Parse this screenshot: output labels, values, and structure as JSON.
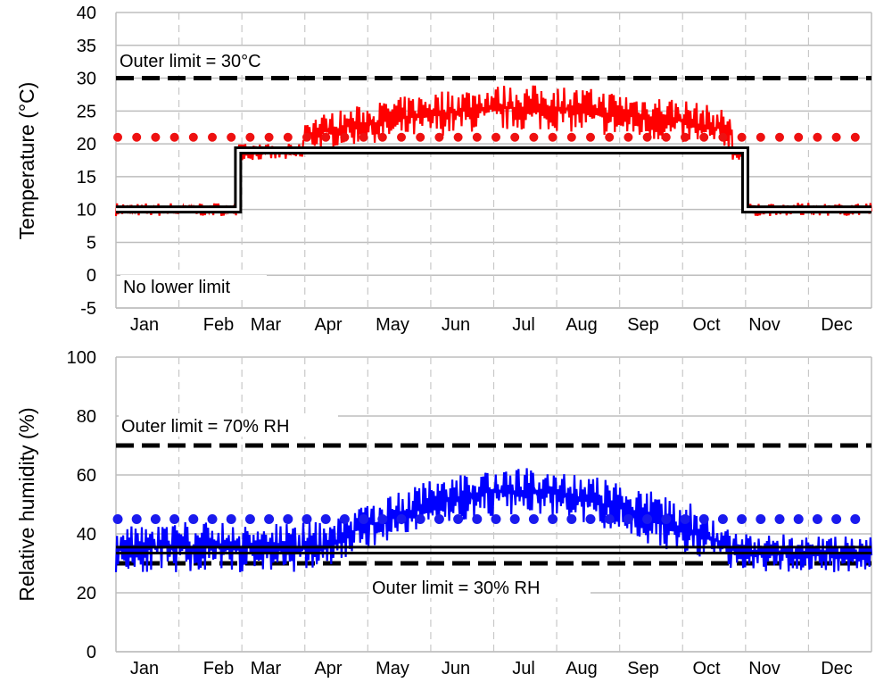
{
  "chart_data": [
    {
      "type": "line",
      "ylabel": "Temperature (°C)",
      "ylim": [
        -5,
        40
      ],
      "yticks": [
        "40",
        "35",
        "30",
        "25",
        "20",
        "15",
        "10",
        "5",
        "0",
        "-5"
      ],
      "ytick_values": [
        40,
        35,
        30,
        25,
        20,
        15,
        10,
        5,
        0,
        -5
      ],
      "categories": [
        "Jan",
        "Feb",
        "Mar",
        "Apr",
        "May",
        "Jun",
        "Jul",
        "Aug",
        "Sep",
        "Oct",
        "Nov",
        "Dec"
      ],
      "grid": true,
      "annotations": {
        "upper": "Outer limit = 30°C",
        "lower": "No lower limit"
      },
      "outer_upper_limit": 30,
      "inner_upper_limit": 21,
      "setpoint_steps": [
        {
          "from_day": 0,
          "to_day": 59,
          "value": 10
        },
        {
          "from_day": 59,
          "to_day": 304,
          "value": 19
        },
        {
          "from_day": 304,
          "to_day": 365,
          "value": 10
        }
      ],
      "measured_envelope_day_low_high": [
        [
          0,
          9,
          11
        ],
        [
          58,
          9,
          11
        ],
        [
          59,
          17.5,
          20
        ],
        [
          90,
          17.5,
          20
        ],
        [
          91,
          19,
          24
        ],
        [
          120,
          20,
          26
        ],
        [
          151,
          21,
          28
        ],
        [
          181,
          22,
          29
        ],
        [
          212,
          22,
          29
        ],
        [
          243,
          21,
          28
        ],
        [
          273,
          20,
          27
        ],
        [
          297,
          19,
          25
        ],
        [
          298,
          17.5,
          20
        ],
        [
          303,
          17.5,
          20
        ],
        [
          304,
          9,
          11
        ],
        [
          365,
          9,
          11
        ]
      ],
      "colors": {
        "measured": "#ff0000",
        "inner_limit": "#ee1111",
        "limits": "#000000"
      }
    },
    {
      "type": "line",
      "ylabel": "Relative humidity (%)",
      "ylim": [
        0,
        100
      ],
      "yticks": [
        "100",
        "80",
        "60",
        "40",
        "20",
        "0"
      ],
      "ytick_values": [
        100,
        80,
        60,
        40,
        20,
        0
      ],
      "categories": [
        "Jan",
        "Feb",
        "Mar",
        "Apr",
        "May",
        "Jun",
        "Jul",
        "Aug",
        "Sep",
        "Oct",
        "Nov",
        "Dec"
      ],
      "grid": true,
      "annotations": {
        "upper": "Outer limit = 70% RH",
        "lower": "Outer limit = 30% RH"
      },
      "outer_upper_limit": 70,
      "outer_lower_limit": 30,
      "inner_upper_limit": 45,
      "setpoint_band": [
        33.5,
        35.5
      ],
      "measured_envelope_day_low_high": [
        [
          0,
          27,
          44
        ],
        [
          100,
          27,
          44
        ],
        [
          120,
          35,
          50
        ],
        [
          151,
          42,
          58
        ],
        [
          181,
          46,
          63
        ],
        [
          212,
          46,
          62
        ],
        [
          243,
          40,
          58
        ],
        [
          273,
          32,
          52
        ],
        [
          290,
          30,
          46
        ],
        [
          300,
          27,
          40
        ],
        [
          365,
          27,
          40
        ]
      ],
      "colors": {
        "measured": "#0000ff",
        "inner_limit": "#1a1aee",
        "limits": "#000000"
      }
    }
  ]
}
